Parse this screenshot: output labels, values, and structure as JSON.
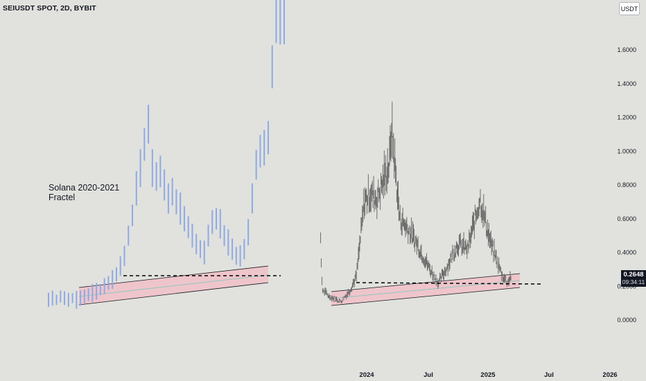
{
  "header": {
    "symbol_line": "SEIUSDT SPOT, 2D, BYBIT",
    "unit_label": "USDT"
  },
  "annotation": {
    "line1": "Solana 2020-2021",
    "line2": "Fractel"
  },
  "last_price": {
    "value": "0.2648",
    "countdown": "09:34:11"
  },
  "colors": {
    "background": "#e1e2dd",
    "fractal_bars": "#8fa9e6",
    "price_bars": "#6b6b6b",
    "channel_fill": "#f0bfc7",
    "channel_border": "#131722",
    "mid_line": "#8fc7c0",
    "support_line": "#000000"
  },
  "chart_data": {
    "type": "ohlc",
    "y_axis": {
      "side": "right",
      "ticks": [
        0.0,
        0.2,
        0.4,
        0.6,
        0.8,
        1.0,
        1.2,
        1.4,
        1.6
      ],
      "tick_labels": [
        "0.0000",
        "0.2000",
        "0.4000",
        "0.6000",
        "0.8000",
        "1.0000",
        "1.2000",
        "1.4000",
        "1.6000"
      ],
      "range": [
        -0.08,
        1.82
      ]
    },
    "x_axis": {
      "tick_labels": [
        "2024",
        "Jul",
        "2025",
        "Jul",
        "2026"
      ]
    },
    "price_series_anchors": [
      {
        "date": "2023-08-15",
        "value": 0.45
      },
      {
        "date": "2023-08-20",
        "value": 0.18
      },
      {
        "date": "2023-09-10",
        "value": 0.14
      },
      {
        "date": "2023-10-15",
        "value": 0.11
      },
      {
        "date": "2023-11-10",
        "value": 0.17
      },
      {
        "date": "2023-12-01",
        "value": 0.26
      },
      {
        "date": "2023-12-25",
        "value": 0.7
      },
      {
        "date": "2024-01-10",
        "value": 0.75
      },
      {
        "date": "2024-02-01",
        "value": 0.72
      },
      {
        "date": "2024-03-10",
        "value": 0.93
      },
      {
        "date": "2024-03-16",
        "value": 1.14
      },
      {
        "date": "2024-04-10",
        "value": 0.6
      },
      {
        "date": "2024-05-01",
        "value": 0.55
      },
      {
        "date": "2024-06-01",
        "value": 0.45
      },
      {
        "date": "2024-07-10",
        "value": 0.3
      },
      {
        "date": "2024-08-05",
        "value": 0.22
      },
      {
        "date": "2024-09-01",
        "value": 0.32
      },
      {
        "date": "2024-10-01",
        "value": 0.45
      },
      {
        "date": "2024-11-01",
        "value": 0.42
      },
      {
        "date": "2024-12-08",
        "value": 0.72
      },
      {
        "date": "2025-01-10",
        "value": 0.45
      },
      {
        "date": "2025-02-10",
        "value": 0.28
      },
      {
        "date": "2025-02-28",
        "value": 0.22
      },
      {
        "date": "2025-03-12",
        "value": 0.2648
      }
    ],
    "fractal_series_values": [
      0.12,
      0.13,
      0.12,
      0.14,
      0.13,
      0.12,
      0.13,
      0.12,
      0.13,
      0.14,
      0.15,
      0.16,
      0.17,
      0.18,
      0.2,
      0.22,
      0.24,
      0.27,
      0.32,
      0.38,
      0.5,
      0.62,
      0.78,
      0.9,
      1.04,
      1.16,
      0.9,
      0.85,
      0.88,
      0.8,
      0.72,
      0.76,
      0.7,
      0.66,
      0.6,
      0.55,
      0.5,
      0.45,
      0.42,
      0.4,
      0.5,
      0.58,
      0.6,
      0.57,
      0.5,
      0.46,
      0.42,
      0.38,
      0.38,
      0.42,
      0.52,
      0.72,
      0.92,
      1.0,
      1.02,
      1.08,
      1.5,
      1.8,
      1.8,
      1.8
    ]
  }
}
